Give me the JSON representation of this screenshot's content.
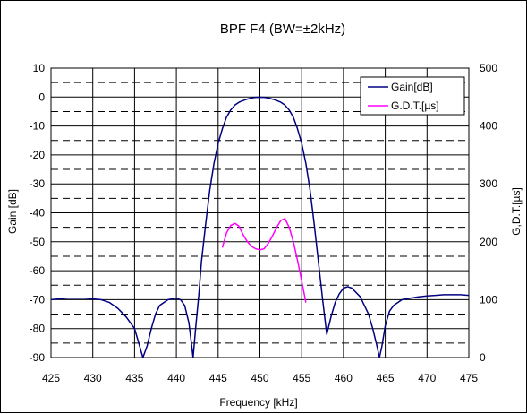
{
  "chart_data": {
    "type": "line",
    "title": "BPF F4 (BW=±2kHz)",
    "xlabel": "Frequency [kHz]",
    "ylabel_left": "Gain [dB]",
    "ylabel_right": "G,D.T.[µs]",
    "xlim": [
      425,
      475
    ],
    "ylim_left": [
      -90,
      10
    ],
    "ylim_right": [
      0,
      500
    ],
    "x_ticks": [
      "425",
      "430",
      "435",
      "440",
      "445",
      "450",
      "455",
      "460",
      "465",
      "470",
      "475"
    ],
    "y_left_ticks": [
      "10",
      "0",
      "-10",
      "-20",
      "-30",
      "-40",
      "-50",
      "-60",
      "-70",
      "-80",
      "-90"
    ],
    "y_right_ticks": [
      "500",
      "400",
      "300",
      "200",
      "100",
      "0"
    ],
    "grid": true,
    "legend_position": "top-right",
    "series": [
      {
        "name": "Gain[dB]",
        "axis": "left",
        "color": "#000080",
        "x": [
          425,
          427,
          429,
          431,
          432,
          433,
          434,
          435,
          435.5,
          436,
          436.5,
          437,
          437.5,
          438,
          439,
          440,
          440.5,
          441,
          441.5,
          441.8,
          442,
          442.3,
          442.7,
          443,
          443.5,
          444,
          444.5,
          445,
          445.5,
          446,
          446.5,
          447,
          447.5,
          448,
          448.5,
          449,
          449.5,
          450,
          450.5,
          451,
          451.5,
          452,
          452.5,
          453,
          453.5,
          454,
          454.5,
          455,
          455.5,
          456,
          456.5,
          457,
          457.5,
          458,
          458.5,
          459,
          459.5,
          460,
          460.5,
          461,
          462,
          463,
          463.5,
          464,
          464.3,
          464.6,
          465,
          465.5,
          466,
          467,
          468,
          469,
          470,
          471,
          472,
          473,
          474,
          475
        ],
        "y": [
          -70,
          -69.5,
          -69.5,
          -70,
          -71,
          -73,
          -76,
          -80,
          -85,
          -92,
          -86,
          -80,
          -75,
          -72,
          -70,
          -69.5,
          -70,
          -72,
          -78,
          -85,
          -92,
          -80,
          -68,
          -57,
          -44,
          -32,
          -23,
          -16,
          -11,
          -7,
          -4.5,
          -2.8,
          -1.8,
          -1.2,
          -0.7,
          -0.3,
          -0.1,
          -0.05,
          -0.1,
          -0.3,
          -0.7,
          -1.2,
          -1.8,
          -2.8,
          -4.5,
          -7,
          -11,
          -16,
          -23,
          -32,
          -44,
          -57,
          -70,
          -82,
          -76,
          -71,
          -68,
          -66,
          -65.5,
          -66,
          -69,
          -75,
          -80,
          -86,
          -92,
          -86,
          -79,
          -74,
          -72,
          -70,
          -69.5,
          -69,
          -68.7,
          -68.5,
          -68.3,
          -68.3,
          -68.3,
          -68.5
        ]
      },
      {
        "name": "G.D.T.[µs]",
        "axis": "right",
        "color": "#ff00ff",
        "x": [
          445.5,
          446,
          446.5,
          447,
          447.5,
          448,
          448.5,
          449,
          449.5,
          450,
          450.5,
          451,
          451.5,
          452,
          452.5,
          453,
          453.5,
          454,
          454.5,
          455,
          455.5
        ],
        "y": [
          190,
          215,
          228,
          232,
          227,
          212,
          200,
          192,
          188,
          186,
          188,
          197,
          210,
          225,
          237,
          240,
          225,
          200,
          168,
          132,
          95
        ]
      }
    ]
  }
}
